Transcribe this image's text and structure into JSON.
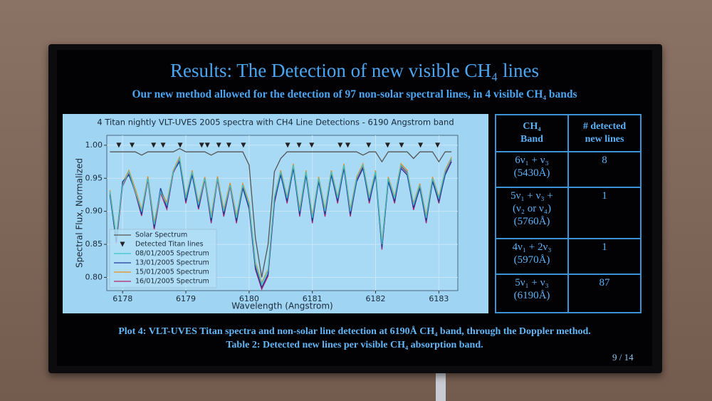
{
  "header": {
    "title": "Results: The Detection of new visible CH₄ lines",
    "subtitle": "Our new method allowed for the detection of 97 non-solar spectral lines, in 4 visible CH₄ bands"
  },
  "chart_data": {
    "type": "line",
    "title": "4 Titan nightly VLT-UVES 2005 spectra with CH4 Line Detections - 6190 Angstrom band",
    "x_label": "Wavelength (Angstrom)",
    "y_label": "Spectral Flux, Normalized",
    "x": [
      6177.8,
      6177.9,
      6178.0,
      6178.1,
      6178.2,
      6178.3,
      6178.4,
      6178.5,
      6178.6,
      6178.7,
      6178.8,
      6178.9,
      6179.0,
      6179.1,
      6179.2,
      6179.3,
      6179.4,
      6179.5,
      6179.6,
      6179.7,
      6179.8,
      6179.9,
      6180.0,
      6180.1,
      6180.2,
      6180.3,
      6180.4,
      6180.5,
      6180.6,
      6180.7,
      6180.8,
      6180.9,
      6181.0,
      6181.1,
      6181.2,
      6181.3,
      6181.4,
      6181.5,
      6181.6,
      6181.7,
      6181.8,
      6181.9,
      6182.0,
      6182.1,
      6182.2,
      6182.3,
      6182.4,
      6182.5,
      6182.6,
      6182.7,
      6182.8,
      6182.9,
      6183.0,
      6183.1,
      6183.2
    ],
    "xlim": [
      6177.75,
      6183.3
    ],
    "xticks": [
      6178,
      6179,
      6180,
      6181,
      6182,
      6183
    ],
    "ylim": [
      0.78,
      1.015
    ],
    "yticks": [
      {
        "value": 0.8,
        "label": "0.80"
      },
      {
        "value": 0.85,
        "label": "0.85"
      },
      {
        "value": 0.9,
        "label": "0.90"
      },
      {
        "value": 0.95,
        "label": "0.95"
      },
      {
        "value": 1.0,
        "label": "1.00"
      }
    ],
    "grid": true,
    "legend": "lower left",
    "series": [
      {
        "name": "Solar Spectrum",
        "color": "#555555",
        "values": [
          0.99,
          0.99,
          0.99,
          0.99,
          0.99,
          0.985,
          0.99,
          0.99,
          0.99,
          0.99,
          0.99,
          0.995,
          0.99,
          0.99,
          0.99,
          0.99,
          0.985,
          0.99,
          0.99,
          0.99,
          0.99,
          0.99,
          0.97,
          0.86,
          0.8,
          0.85,
          0.96,
          0.98,
          0.99,
          0.99,
          0.99,
          0.99,
          0.99,
          0.99,
          0.99,
          0.99,
          0.99,
          0.99,
          0.99,
          0.99,
          0.985,
          0.99,
          0.99,
          0.975,
          0.99,
          0.99,
          0.99,
          0.99,
          0.98,
          0.99,
          0.99,
          0.99,
          0.975,
          0.99,
          0.99
        ]
      },
      {
        "name": "Detected Titan lines",
        "color": "#222222",
        "marker": "triangle",
        "x": [
          6177.94,
          6178.15,
          6178.49,
          6178.64,
          6178.91,
          6179.25,
          6179.34,
          6179.52,
          6179.68,
          6179.91,
          6180.61,
          6180.79,
          6180.99,
          6181.44,
          6181.56,
          6181.89,
          6182.19,
          6182.41,
          6182.71,
          6182.98
        ],
        "values": [
          1.0,
          1.0,
          1.0,
          1.0,
          1.0,
          1.0,
          1.0,
          1.0,
          1.0,
          1.0,
          1.0,
          1.0,
          1.0,
          1.0,
          1.0,
          1.0,
          1.0,
          1.0,
          1.0,
          1.0
        ]
      },
      {
        "name": "08/01/2005 Spectrum",
        "color": "#3cc4c8",
        "values": [
          0.93,
          0.86,
          0.94,
          0.96,
          0.93,
          0.9,
          0.95,
          0.88,
          0.93,
          0.91,
          0.96,
          0.98,
          0.92,
          0.96,
          0.91,
          0.95,
          0.89,
          0.95,
          0.9,
          0.94,
          0.89,
          0.94,
          0.91,
          0.82,
          0.79,
          0.81,
          0.92,
          0.96,
          0.92,
          0.97,
          0.9,
          0.96,
          0.89,
          0.95,
          0.9,
          0.96,
          0.92,
          0.97,
          0.9,
          0.95,
          0.97,
          0.92,
          0.96,
          0.85,
          0.95,
          0.92,
          0.97,
          0.96,
          0.91,
          0.94,
          0.89,
          0.95,
          0.92,
          0.96,
          0.98
        ]
      },
      {
        "name": "13/01/2005 Spectrum",
        "color": "#1f3a9a",
        "values": [
          0.925,
          0.855,
          0.945,
          0.955,
          0.93,
          0.895,
          0.95,
          0.875,
          0.935,
          0.905,
          0.96,
          0.975,
          0.915,
          0.955,
          0.905,
          0.95,
          0.885,
          0.95,
          0.895,
          0.94,
          0.885,
          0.935,
          0.905,
          0.815,
          0.785,
          0.805,
          0.915,
          0.955,
          0.915,
          0.965,
          0.895,
          0.955,
          0.885,
          0.945,
          0.895,
          0.955,
          0.915,
          0.965,
          0.895,
          0.945,
          0.965,
          0.915,
          0.955,
          0.845,
          0.945,
          0.915,
          0.965,
          0.955,
          0.905,
          0.935,
          0.885,
          0.945,
          0.915,
          0.955,
          0.975
        ]
      },
      {
        "name": "15/01/2005 Spectrum",
        "color": "#f08a1c",
        "values": [
          0.932,
          0.862,
          0.943,
          0.962,
          0.934,
          0.902,
          0.953,
          0.883,
          0.932,
          0.913,
          0.962,
          0.982,
          0.922,
          0.962,
          0.913,
          0.952,
          0.893,
          0.953,
          0.903,
          0.943,
          0.893,
          0.942,
          0.913,
          0.823,
          0.792,
          0.812,
          0.922,
          0.962,
          0.922,
          0.972,
          0.903,
          0.962,
          0.893,
          0.952,
          0.903,
          0.962,
          0.922,
          0.972,
          0.903,
          0.952,
          0.972,
          0.922,
          0.962,
          0.853,
          0.952,
          0.922,
          0.972,
          0.962,
          0.912,
          0.942,
          0.893,
          0.952,
          0.922,
          0.962,
          0.982
        ]
      },
      {
        "name": "16/01/2005 Spectrum",
        "color": "#b4246a",
        "values": [
          0.928,
          0.852,
          0.938,
          0.958,
          0.928,
          0.893,
          0.948,
          0.872,
          0.928,
          0.903,
          0.958,
          0.978,
          0.912,
          0.958,
          0.903,
          0.948,
          0.882,
          0.948,
          0.892,
          0.938,
          0.882,
          0.938,
          0.903,
          0.812,
          0.782,
          0.802,
          0.912,
          0.958,
          0.912,
          0.968,
          0.892,
          0.958,
          0.882,
          0.948,
          0.892,
          0.958,
          0.912,
          0.968,
          0.892,
          0.948,
          0.968,
          0.912,
          0.958,
          0.842,
          0.948,
          0.912,
          0.968,
          0.958,
          0.902,
          0.938,
          0.882,
          0.948,
          0.912,
          0.958,
          0.978
        ]
      }
    ]
  },
  "table": {
    "header": [
      [
        "CH₄",
        "Band"
      ],
      [
        "# detected",
        "new lines"
      ]
    ],
    "rows": [
      [
        [
          "6ν₁ + ν₃",
          "(5430Å)"
        ],
        "8"
      ],
      [
        [
          "5ν₁ + ν₃ +",
          "(ν₂ or ν₄)",
          "(5760Å)"
        ],
        "1"
      ],
      [
        [
          "4ν₁ + 2ν₃",
          "(5970Å)"
        ],
        "1"
      ],
      [
        [
          "5ν₁ + ν₃",
          "(6190Å)"
        ],
        "87"
      ]
    ]
  },
  "caption": [
    "Plot 4: VLT-UVES Titan spectra and non-solar line detection at 6190Å CH₄ band, through the Doppler method.",
    "Table 2: Detected new lines per visible CH₄ absorption band."
  ],
  "page_number": "9 / 14"
}
